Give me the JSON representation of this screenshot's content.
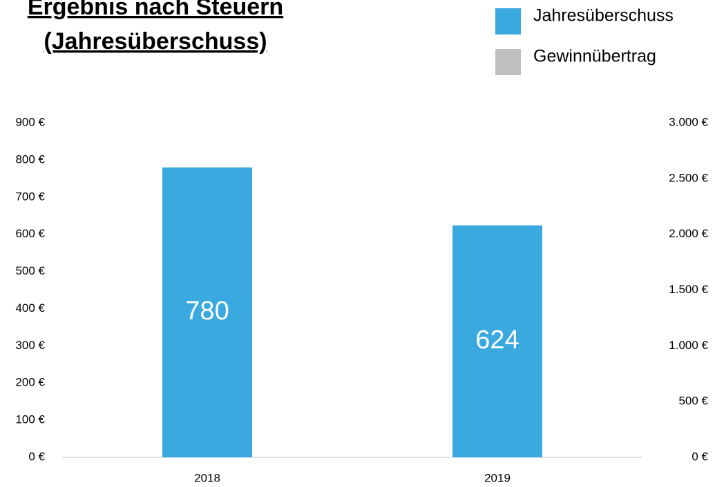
{
  "chart_data": {
    "type": "bar",
    "title": [
      "Ergebnis nach Steuern",
      "(Jahresüberschuss)"
    ],
    "categories": [
      "2018",
      "2019"
    ],
    "series": [
      {
        "name": "Jahresüberschuss",
        "color": "#3aa9e0",
        "values": [
          780,
          624
        ]
      },
      {
        "name": "Gewinnübertrag",
        "color": "#bfbfbf",
        "axis": "y2",
        "values": [
          null,
          null
        ]
      }
    ],
    "ylim": [
      0,
      900
    ],
    "yticks": [
      {
        "value": 0,
        "label": "0 €"
      },
      {
        "value": 100,
        "label": "100 €"
      },
      {
        "value": 200,
        "label": "200 €"
      },
      {
        "value": 300,
        "label": "300 €"
      },
      {
        "value": 400,
        "label": "400 €"
      },
      {
        "value": 500,
        "label": "500 €"
      },
      {
        "value": 600,
        "label": "600 €"
      },
      {
        "value": 700,
        "label": "700 €"
      },
      {
        "value": 800,
        "label": "800 €"
      },
      {
        "value": 900,
        "label": "900 €"
      }
    ],
    "y2lim": [
      0,
      3000
    ],
    "y2ticks": [
      {
        "value": 0,
        "label": "0 €"
      },
      {
        "value": 500,
        "label": "500 €"
      },
      {
        "value": 1000,
        "label": "1.000 €"
      },
      {
        "value": 1500,
        "label": "1.500 €"
      },
      {
        "value": 2000,
        "label": "2.000 €"
      },
      {
        "value": 2500,
        "label": "2.500 €"
      },
      {
        "value": 3000,
        "label": "3.000 €"
      }
    ],
    "legend": "top-right",
    "grid": false
  }
}
